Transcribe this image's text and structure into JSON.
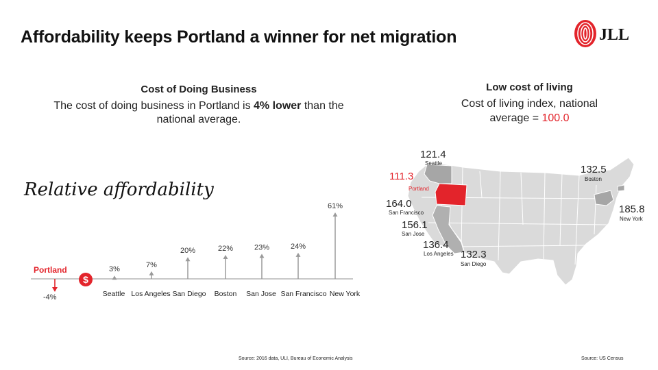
{
  "title": "Affordability keeps Portland a winner for net migration",
  "logo": {
    "text": "JLL",
    "color": "#e3242b"
  },
  "cost_of_business": {
    "heading": "Cost of Doing Business",
    "text_before": "The cost of doing  business in Portland  is ",
    "text_bold": "4% lower",
    "text_after": " than the  national average."
  },
  "cost_of_living": {
    "heading": "Low cost of living",
    "text": "Cost of living index, national average = ",
    "value": "100.0"
  },
  "relative_affordability": {
    "title": "Relative affordability"
  },
  "colors": {
    "accent": "#e3242b",
    "gray": "#9a9a9a",
    "map_fill": "#d9d9d9"
  },
  "chart_data": {
    "type": "bar",
    "highlight": {
      "name": "Portland",
      "value": -4,
      "label": "-4%",
      "icon": "dollar-icon"
    },
    "categories": [
      "Seattle",
      "Los Angeles",
      "San Diego",
      "Boston",
      "San Jose",
      "San Francisco",
      "New York"
    ],
    "values": [
      3,
      7,
      20,
      22,
      23,
      24,
      61
    ],
    "value_labels": [
      "3%",
      "7%",
      "20%",
      "22%",
      "23%",
      "24%",
      "61%"
    ]
  },
  "map": {
    "cities": [
      {
        "name": "Seattle",
        "value": "121.4",
        "highlight": false
      },
      {
        "name": "Portland",
        "value": "111.3",
        "highlight": true
      },
      {
        "name": "San Francisco",
        "value": "164.0",
        "highlight": false
      },
      {
        "name": "San Jose",
        "value": "156.1",
        "highlight": false
      },
      {
        "name": "Los Angeles",
        "value": "136.4",
        "highlight": false
      },
      {
        "name": "San Diego",
        "value": "132.3",
        "highlight": false
      },
      {
        "name": "Boston",
        "value": "132.5",
        "highlight": false
      },
      {
        "name": "New York",
        "value": "185.8",
        "highlight": false
      }
    ]
  },
  "sources": {
    "left": "Source: 2016 data, ULI, Bureau of Economic Analysis",
    "right": "Source: US Census"
  }
}
